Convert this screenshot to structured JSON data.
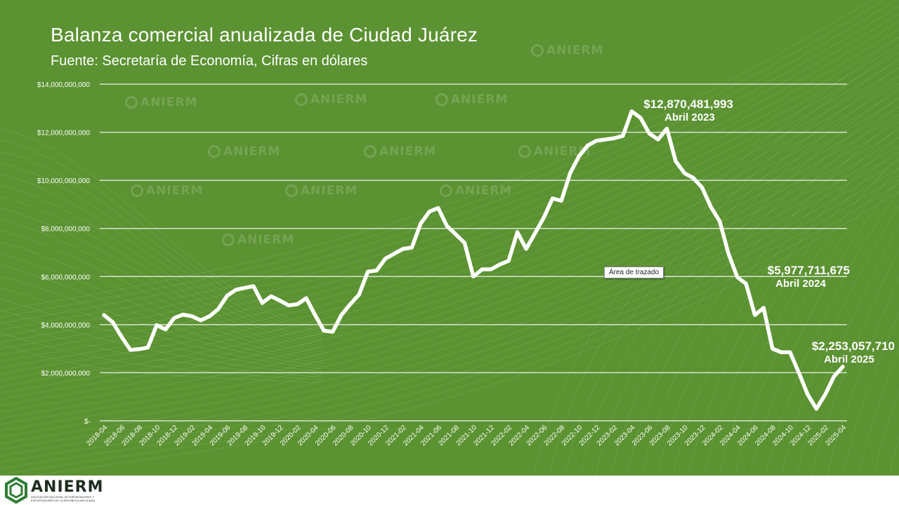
{
  "header": {
    "title": "Balanza comercial anualizada de Ciudad Juárez",
    "subtitle": "Fuente: Secretaría de Economía, Cifras en dólares"
  },
  "tooltip": "Área de trazado",
  "callouts": [
    {
      "value": "$12,870,481,993",
      "date": "Abril 2023"
    },
    {
      "value": "$5,977,711,675",
      "date": "Abril 2024"
    },
    {
      "value": "$2,253,057,710",
      "date": "Abril 2025"
    }
  ],
  "footer": {
    "brand": "ANIERM",
    "subtitle": "ASOCIACIÓN NACIONAL DE IMPORTADORES Y EXPORTADORES DE LA REPÚBLICA MEXICANA"
  },
  "watermark": "ANIERM",
  "colors": {
    "background": "#5b9232",
    "line": "#ffffff",
    "grid": "#ffffff"
  },
  "chart_data": {
    "type": "line",
    "ylim": [
      0,
      14000000000
    ],
    "y_ticks": [
      {
        "value": 0,
        "label": "$-"
      },
      {
        "value": 2000000000,
        "label": "$2,000,000,000"
      },
      {
        "value": 4000000000,
        "label": "$4,000,000,000"
      },
      {
        "value": 6000000000,
        "label": "$6,000,000,000"
      },
      {
        "value": 8000000000,
        "label": "$8,000,000,000"
      },
      {
        "value": 10000000000,
        "label": "$10,000,000,000"
      },
      {
        "value": 12000000000,
        "label": "$12,000,000,000"
      },
      {
        "value": 14000000000,
        "label": "$14,000,000,000"
      }
    ],
    "x_tick_labels": [
      "2018-04",
      "2018-06",
      "2018-08",
      "2018-10",
      "2018-12",
      "2019-02",
      "2019-04",
      "2019-06",
      "2019-08",
      "2019-10",
      "2019-12",
      "2020-02",
      "2020-04",
      "2020-06",
      "2020-08",
      "2020-10",
      "2020-12",
      "2021-02",
      "2021-04",
      "2021-06",
      "2021-08",
      "2021-10",
      "2021-12",
      "2022-02",
      "2022-04",
      "2022-06",
      "2022-08",
      "2022-10",
      "2022-12",
      "2023-02",
      "2023-04",
      "2023-06",
      "2023-08",
      "2023-10",
      "2023-12",
      "2024-02",
      "2024-04",
      "2024-06",
      "2024-08",
      "2024-10",
      "2024-12",
      "2025-02",
      "2025-04"
    ],
    "x": [
      "2018-04",
      "2018-05",
      "2018-06",
      "2018-07",
      "2018-08",
      "2018-09",
      "2018-10",
      "2018-11",
      "2018-12",
      "2019-01",
      "2019-02",
      "2019-03",
      "2019-04",
      "2019-05",
      "2019-06",
      "2019-07",
      "2019-08",
      "2019-09",
      "2019-10",
      "2019-11",
      "2019-12",
      "2020-01",
      "2020-02",
      "2020-03",
      "2020-04",
      "2020-05",
      "2020-06",
      "2020-07",
      "2020-08",
      "2020-09",
      "2020-10",
      "2020-11",
      "2020-12",
      "2021-01",
      "2021-02",
      "2021-03",
      "2021-04",
      "2021-05",
      "2021-06",
      "2021-07",
      "2021-08",
      "2021-09",
      "2021-10",
      "2021-11",
      "2021-12",
      "2022-01",
      "2022-02",
      "2022-03",
      "2022-04",
      "2022-05",
      "2022-06",
      "2022-07",
      "2022-08",
      "2022-09",
      "2022-10",
      "2022-11",
      "2022-12",
      "2023-01",
      "2023-02",
      "2023-03",
      "2023-04",
      "2023-05",
      "2023-06",
      "2023-07",
      "2023-08",
      "2023-09",
      "2023-10",
      "2023-11",
      "2023-12",
      "2024-01",
      "2024-02",
      "2024-03",
      "2024-04",
      "2024-05",
      "2024-06",
      "2024-07",
      "2024-08",
      "2024-09",
      "2024-10",
      "2024-11",
      "2024-12",
      "2025-01",
      "2025-02",
      "2025-03",
      "2025-04"
    ],
    "series": [
      {
        "values": [
          4400000000,
          4100000000,
          3500000000,
          2950000000,
          2980000000,
          3050000000,
          3980000000,
          3800000000,
          4280000000,
          4420000000,
          4350000000,
          4180000000,
          4350000000,
          4650000000,
          5200000000,
          5450000000,
          5530000000,
          5600000000,
          4900000000,
          5180000000,
          5000000000,
          4800000000,
          4850000000,
          5100000000,
          4400000000,
          3750000000,
          3700000000,
          4400000000,
          4850000000,
          5250000000,
          6200000000,
          6250000000,
          6750000000,
          6950000000,
          7150000000,
          7200000000,
          8200000000,
          8700000000,
          8850000000,
          8100000000,
          7750000000,
          7400000000,
          6000000000,
          6300000000,
          6300000000,
          6500000000,
          6650000000,
          7850000000,
          7150000000,
          7800000000,
          8450000000,
          9250000000,
          9150000000,
          10300000000,
          11000000000,
          11450000000,
          11650000000,
          11700000000,
          11750000000,
          11850000000,
          12870481993,
          12600000000,
          11950000000,
          11700000000,
          12150000000,
          10800000000,
          10300000000,
          10100000000,
          9700000000,
          8900000000,
          8300000000,
          6950000000,
          5977711675,
          5700000000,
          4400000000,
          4700000000,
          3000000000,
          2850000000,
          2850000000,
          2000000000,
          1100000000,
          500000000,
          1100000000,
          1850000000,
          2253057710
        ]
      }
    ],
    "grid": true,
    "legend": "none"
  }
}
